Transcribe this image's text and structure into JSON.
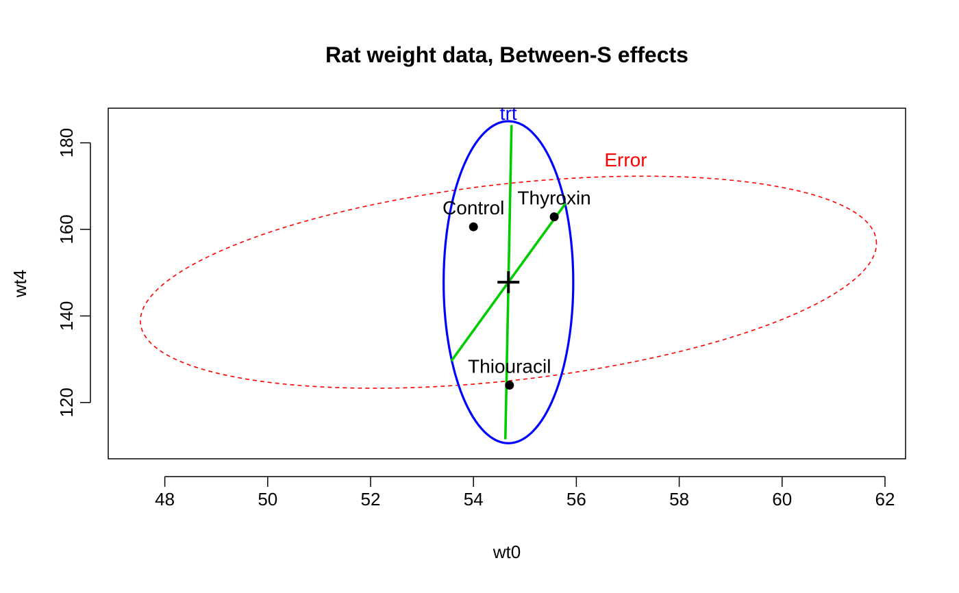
{
  "chart_data": {
    "type": "scatter",
    "title": "Rat weight data, Between-S effects",
    "xlabel": "wt0",
    "ylabel": "wt4",
    "xlim": [
      46.9,
      62.4
    ],
    "ylim": [
      107,
      188
    ],
    "x_ticks": [
      48,
      50,
      52,
      54,
      56,
      58,
      60,
      62
    ],
    "y_ticks": [
      120,
      140,
      160,
      180
    ],
    "grid": false,
    "points": [
      {
        "label": "Control",
        "x": 54.0,
        "y": 160.6
      },
      {
        "label": "Thyroxin",
        "x": 55.57,
        "y": 162.9
      },
      {
        "label": "Thiouracil",
        "x": 54.7,
        "y": 124.0
      }
    ],
    "grand_mean": {
      "x": 54.68,
      "y": 147.8
    },
    "ellipses": [
      {
        "label": "trt",
        "color": "#0000ff",
        "line_style": "solid",
        "center": {
          "x": 54.68,
          "y": 147.8
        },
        "extent_x": [
          53.41,
          55.93
        ],
        "extent_y": [
          110.6,
          185.0
        ]
      },
      {
        "label": "Error",
        "color": "#ff0000",
        "line_style": "dashed",
        "center": {
          "x": 54.68,
          "y": 147.8
        },
        "extent_x": [
          47.52,
          61.83
        ],
        "extent_y": [
          123.3,
          172.3
        ]
      }
    ],
    "axes_lines": [
      {
        "color": "#00cc00",
        "from": {
          "x": 54.62,
          "y": 111.5
        },
        "to": {
          "x": 54.74,
          "y": 184.1
        }
      },
      {
        "color": "#00cc00",
        "from": {
          "x": 53.57,
          "y": 129.6
        },
        "to": {
          "x": 55.79,
          "y": 166.0
        }
      }
    ],
    "point_color": "#000000"
  }
}
